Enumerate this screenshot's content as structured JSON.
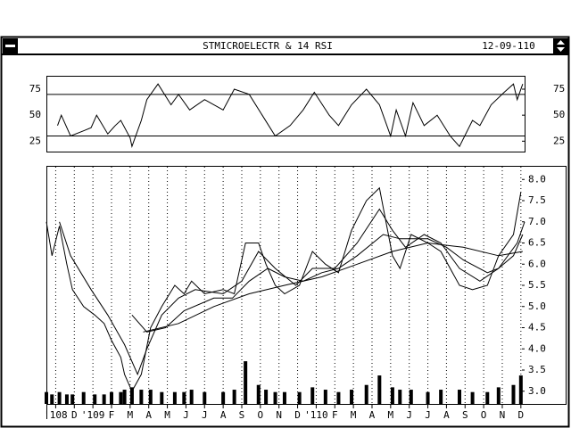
{
  "window": {
    "title": "STMICROELECTR & 14 RSI",
    "date": "12-09-110"
  },
  "chart_data": [
    {
      "type": "line",
      "xlim": [
        -0.5,
        25.2
      ],
      "ylim": [
        15,
        87
      ],
      "yticks": [
        25,
        50,
        75
      ],
      "reference_lines": [
        30,
        70
      ],
      "series": [
        {
          "color": "#000000",
          "x": [
            0.1,
            0.3,
            0.8,
            1.5,
            1.9,
            2.2,
            2.8,
            3.2,
            3.5,
            4.0,
            4.1,
            4.6,
            4.9,
            5.5,
            6.2,
            6.6,
            7.2,
            8.0,
            9.0,
            9.6,
            10.4,
            11.1,
            11.8,
            12.6,
            13.3,
            13.9,
            14.7,
            15.2,
            15.9,
            16.7,
            17.4,
            18.0,
            18.3,
            18.8,
            19.2,
            19.8,
            20.5,
            21.2,
            21.7,
            22.4,
            22.8,
            23.4,
            24.1,
            24.6,
            24.8,
            25.1
          ],
          "values": [
            40,
            50,
            30,
            35,
            38,
            50,
            32,
            40,
            45,
            28,
            20,
            45,
            65,
            80,
            60,
            70,
            55,
            65,
            55,
            75,
            70,
            50,
            30,
            40,
            55,
            72,
            50,
            40,
            60,
            75,
            60,
            30,
            55,
            30,
            62,
            40,
            50,
            30,
            20,
            45,
            40,
            60,
            72,
            80,
            65,
            80
          ]
        }
      ]
    },
    {
      "type": "line",
      "xlim": [
        -0.5,
        25.2
      ],
      "ylim": [
        2.7,
        8.3
      ],
      "y2lim": [
        0,
        100
      ],
      "grid": "x",
      "yticks": [
        {
          "value": 3,
          "label": "3.0"
        },
        {
          "value": 3.5,
          "label": "3.5"
        },
        {
          "value": 4,
          "label": "4.0"
        },
        {
          "value": 4.5,
          "label": "4.5"
        },
        {
          "value": 5,
          "label": "5.0"
        },
        {
          "value": 5.5,
          "label": "5.5"
        },
        {
          "value": 6,
          "label": "6.0"
        },
        {
          "value": 6.5,
          "label": "6.5"
        },
        {
          "value": 7,
          "label": "7.0"
        },
        {
          "value": 7.5,
          "label": "7.5"
        },
        {
          "value": 8,
          "label": "8.0"
        }
      ],
      "xticks": [
        {
          "value": 0,
          "label": "'108"
        },
        {
          "value": 1,
          "label": "D"
        },
        {
          "value": 2,
          "label": "'109"
        },
        {
          "value": 3,
          "label": "F"
        },
        {
          "value": 4,
          "label": "M"
        },
        {
          "value": 5,
          "label": "A"
        },
        {
          "value": 6,
          "label": "M"
        },
        {
          "value": 7,
          "label": "J"
        },
        {
          "value": 8,
          "label": "J"
        },
        {
          "value": 9,
          "label": "A"
        },
        {
          "value": 10,
          "label": "S"
        },
        {
          "value": 11,
          "label": "O"
        },
        {
          "value": 12,
          "label": "N"
        },
        {
          "value": 13,
          "label": "D"
        },
        {
          "value": 14,
          "label": "'110"
        },
        {
          "value": 15,
          "label": "F"
        },
        {
          "value": 16,
          "label": "M"
        },
        {
          "value": 17,
          "label": "A"
        },
        {
          "value": 18,
          "label": "M"
        },
        {
          "value": 19,
          "label": "J"
        },
        {
          "value": 20,
          "label": "J"
        },
        {
          "value": 21,
          "label": "A"
        },
        {
          "value": 22,
          "label": "S"
        },
        {
          "value": 23,
          "label": "O"
        },
        {
          "value": 24,
          "label": "N"
        },
        {
          "value": 25,
          "label": "D"
        }
      ],
      "series": [
        {
          "color": "#000000",
          "x": [
            -0.5,
            -0.2,
            0.2,
            0.6,
            0.9,
            1.5,
            2.1,
            2.6,
            3.0,
            3.5,
            3.7,
            4.1,
            4.6,
            5.1,
            5.7,
            6.4,
            6.9,
            7.3,
            8.0,
            9.0,
            9.6,
            10.2,
            10.9,
            11.3,
            11.8,
            12.3,
            13.1,
            13.8,
            14.5,
            15.2,
            15.9,
            16.7,
            17.4,
            18.1,
            18.5,
            19.1,
            20.0,
            20.7,
            21.7,
            22.4,
            23.2,
            23.8,
            24.6,
            25.0
          ],
          "values": [
            7.0,
            6.2,
            6.9,
            6.0,
            5.4,
            5.0,
            4.8,
            4.6,
            4.2,
            3.8,
            3.4,
            3.0,
            3.4,
            4.5,
            5.0,
            5.5,
            5.3,
            5.6,
            5.3,
            5.4,
            5.3,
            6.5,
            6.5,
            6.0,
            5.5,
            5.3,
            5.5,
            6.3,
            6.0,
            5.8,
            6.8,
            7.5,
            7.8,
            6.2,
            5.9,
            6.7,
            6.5,
            6.3,
            5.5,
            5.4,
            5.5,
            6.2,
            6.7,
            7.7
          ]
        },
        {
          "color": "#000000",
          "x": [
            0.2,
            0.8,
            1.9,
            2.8,
            3.7,
            4.4,
            4.9,
            5.7,
            6.6,
            7.5,
            9.0,
            10.0,
            10.9,
            11.8,
            12.9,
            13.8,
            15.0,
            16.2,
            17.4,
            18.1,
            18.8,
            19.8,
            20.7,
            21.7,
            22.8,
            23.8,
            24.8,
            25.2
          ],
          "values": [
            7.0,
            6.2,
            5.4,
            4.8,
            4.1,
            3.4,
            4.0,
            4.8,
            5.2,
            5.4,
            5.3,
            5.6,
            6.3,
            5.9,
            5.5,
            5.9,
            5.9,
            6.5,
            7.3,
            6.8,
            6.4,
            6.7,
            6.5,
            5.9,
            5.6,
            5.9,
            6.5,
            7.0
          ]
        },
        {
          "color": "#000000",
          "x": [
            4.1,
            4.9,
            5.9,
            6.9,
            8.5,
            9.5,
            10.4,
            11.4,
            12.3,
            13.3,
            14.3,
            15.2,
            16.2,
            17.6,
            18.5,
            20.0,
            21.0,
            21.9,
            23.2,
            23.8,
            24.6,
            25.1
          ],
          "values": [
            4.8,
            4.4,
            4.5,
            4.9,
            5.2,
            5.2,
            5.6,
            5.9,
            5.7,
            5.6,
            5.8,
            5.9,
            6.2,
            6.7,
            6.6,
            6.6,
            6.4,
            6.1,
            5.8,
            5.9,
            6.2,
            6.7
          ]
        },
        {
          "color": "#000000",
          "x": [
            4.7,
            6.6,
            8.5,
            10.4,
            12.3,
            14.3,
            16.2,
            18.1,
            20.0,
            21.9,
            23.8,
            25.1
          ],
          "values": [
            4.4,
            4.6,
            5.0,
            5.3,
            5.5,
            5.7,
            6.0,
            6.3,
            6.5,
            6.4,
            6.2,
            6.3
          ]
        },
        {
          "color": "#000000",
          "type": "bar",
          "axis": "y2",
          "x": [
            -0.5,
            -0.2,
            0.2,
            0.6,
            0.9,
            1.5,
            2.1,
            2.6,
            3.0,
            3.5,
            3.7,
            4.1,
            4.6,
            5.1,
            5.7,
            6.4,
            6.9,
            7.3,
            8.0,
            9.0,
            9.6,
            10.2,
            10.9,
            11.3,
            11.8,
            12.3,
            13.1,
            13.8,
            14.5,
            15.2,
            15.9,
            16.7,
            17.4,
            18.1,
            18.5,
            19.1,
            20.0,
            20.7,
            21.7,
            22.4,
            23.2,
            23.8,
            24.6,
            25.0
          ],
          "values": [
            5,
            4,
            5,
            4,
            4,
            5,
            4,
            4,
            5,
            5,
            6,
            7,
            6,
            6,
            5,
            5,
            5,
            6,
            5,
            5,
            6,
            18,
            8,
            6,
            5,
            5,
            5,
            7,
            6,
            5,
            6,
            8,
            12,
            7,
            6,
            6,
            5,
            6,
            6,
            5,
            5,
            7,
            8,
            12
          ]
        }
      ]
    }
  ]
}
